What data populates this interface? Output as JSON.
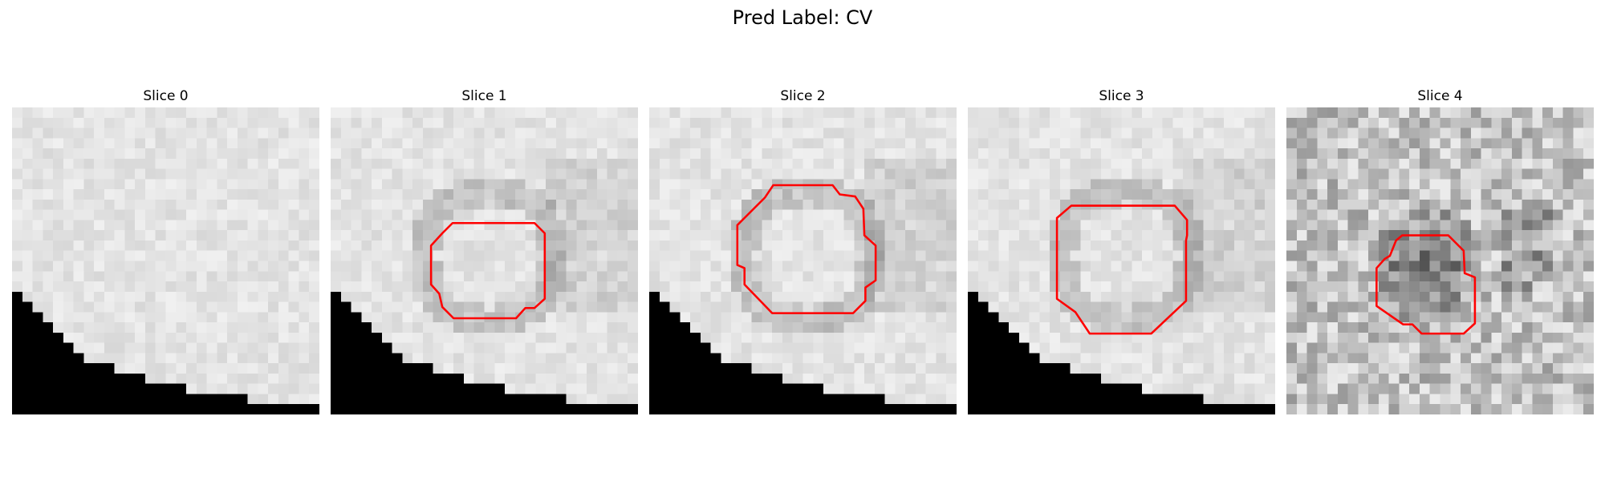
{
  "figure": {
    "title": "Pred Label: CV"
  },
  "slices": [
    {
      "label": "Slice 0",
      "variant": "edge",
      "contour": false
    },
    {
      "label": "Slice 1",
      "variant": "edge",
      "contour": true
    },
    {
      "label": "Slice 2",
      "variant": "edge",
      "contour": true
    },
    {
      "label": "Slice 3",
      "variant": "edge",
      "contour": true
    },
    {
      "label": "Slice 4",
      "variant": "noisy",
      "contour": true
    }
  ],
  "contour_color": "#ff0000"
}
